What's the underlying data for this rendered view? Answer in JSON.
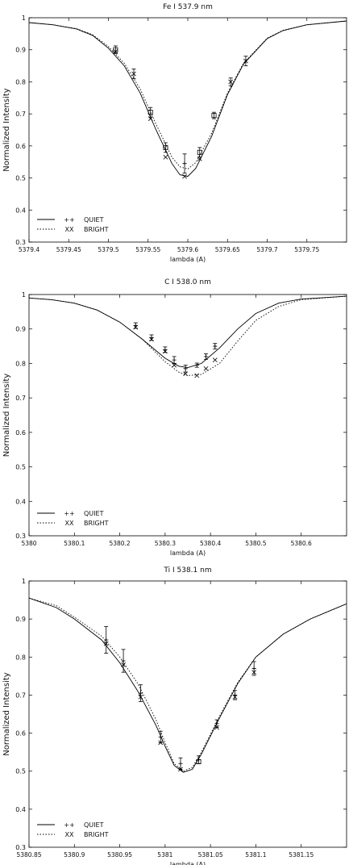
{
  "chart_data": [
    {
      "type": "line",
      "title": "Fe I 537.9 nm",
      "xlabel": "lambda (A)",
      "ylabel": "Normalized Intensity",
      "xlim": [
        5379.4,
        5379.8
      ],
      "ylim": [
        0.3,
        1.0
      ],
      "xticks": [
        5379.4,
        5379.45,
        5379.5,
        5379.55,
        5379.6,
        5379.65,
        5379.7,
        5379.75
      ],
      "yticks": [
        0.3,
        0.4,
        0.5,
        0.6,
        0.7,
        0.8,
        0.9,
        1.0
      ],
      "xtick_labels": [
        "5379.4",
        "5379.45",
        "5379.5",
        "5379.55",
        "5379.6",
        "5379.65",
        "5379.7",
        "5379.75"
      ],
      "ytick_labels": [
        "0.3",
        "0.4",
        "0.5",
        "0.6",
        "0.7",
        "0.8",
        "0.9",
        "1"
      ],
      "legend": {
        "position": "lower-left",
        "entries": [
          {
            "marker_label": "++",
            "label": "QUIET",
            "style": "solid"
          },
          {
            "marker_label": "XX",
            "label": "BRIGHT",
            "style": "dotted"
          }
        ]
      },
      "series": [
        {
          "style": "solid",
          "x": [
            5379.4,
            5379.43,
            5379.46,
            5379.48,
            5379.5,
            5379.52,
            5379.54,
            5379.56,
            5379.58,
            5379.59,
            5379.6,
            5379.61,
            5379.63,
            5379.65,
            5379.67,
            5379.7,
            5379.72,
            5379.75,
            5379.8
          ],
          "y": [
            0.985,
            0.978,
            0.965,
            0.945,
            0.905,
            0.85,
            0.765,
            0.65,
            0.545,
            0.51,
            0.505,
            0.53,
            0.63,
            0.76,
            0.855,
            0.935,
            0.96,
            0.978,
            0.99
          ]
        },
        {
          "style": "dotted",
          "x": [
            5379.4,
            5379.43,
            5379.46,
            5379.48,
            5379.5,
            5379.52,
            5379.54,
            5379.56,
            5379.58,
            5379.59,
            5379.6,
            5379.61,
            5379.63,
            5379.65,
            5379.67,
            5379.7,
            5379.72,
            5379.75,
            5379.8
          ],
          "y": [
            0.985,
            0.978,
            0.966,
            0.947,
            0.91,
            0.858,
            0.778,
            0.668,
            0.565,
            0.535,
            0.528,
            0.548,
            0.64,
            0.765,
            0.858,
            0.936,
            0.961,
            0.978,
            0.99
          ]
        }
      ],
      "points": [
        {
          "x": 5379.509,
          "y": 0.9,
          "err": 0.012,
          "marker": "square"
        },
        {
          "x": 5379.509,
          "y": 0.895,
          "err": 0.0,
          "marker": "x"
        },
        {
          "x": 5379.532,
          "y": 0.825,
          "err": 0.015,
          "marker": "x"
        },
        {
          "x": 5379.553,
          "y": 0.705,
          "err": 0.015,
          "marker": "square"
        },
        {
          "x": 5379.553,
          "y": 0.685,
          "err": 0.0,
          "marker": "x"
        },
        {
          "x": 5379.572,
          "y": 0.595,
          "err": 0.015,
          "marker": "square"
        },
        {
          "x": 5379.572,
          "y": 0.565,
          "err": 0.0,
          "marker": "x"
        },
        {
          "x": 5379.596,
          "y": 0.545,
          "err": 0.03,
          "marker": "plus"
        },
        {
          "x": 5379.596,
          "y": 0.505,
          "err": 0.0,
          "marker": "x"
        },
        {
          "x": 5379.615,
          "y": 0.58,
          "err": 0.015,
          "marker": "square"
        },
        {
          "x": 5379.615,
          "y": 0.56,
          "err": 0.0,
          "marker": "x"
        },
        {
          "x": 5379.633,
          "y": 0.695,
          "err": 0.01,
          "marker": "square"
        },
        {
          "x": 5379.654,
          "y": 0.8,
          "err": 0.012,
          "marker": "x"
        },
        {
          "x": 5379.673,
          "y": 0.865,
          "err": 0.015,
          "marker": "x"
        }
      ]
    },
    {
      "type": "line",
      "title": "C I 538.0 nm",
      "xlabel": "lambda (A)",
      "ylabel": "Normalized Intensity",
      "xlim": [
        5380.0,
        5380.7
      ],
      "ylim": [
        0.3,
        1.0
      ],
      "xticks": [
        5380.0,
        5380.1,
        5380.2,
        5380.3,
        5380.4,
        5380.5,
        5380.6
      ],
      "yticks": [
        0.3,
        0.4,
        0.5,
        0.6,
        0.7,
        0.8,
        0.9,
        1.0
      ],
      "xtick_labels": [
        "5380",
        "5380.1",
        "5380.2",
        "5380.3",
        "5380.4",
        "5380.5",
        "5380.6"
      ],
      "ytick_labels": [
        "0.3",
        "0.4",
        "0.5",
        "0.6",
        "0.7",
        "0.8",
        "0.9",
        "1"
      ],
      "legend": {
        "position": "lower-left",
        "entries": [
          {
            "marker_label": "++",
            "label": "QUIET",
            "style": "solid"
          },
          {
            "marker_label": "XX",
            "label": "BRIGHT",
            "style": "dotted"
          }
        ]
      },
      "series": [
        {
          "style": "solid",
          "x": [
            5380.0,
            5380.05,
            5380.1,
            5380.15,
            5380.2,
            5380.25,
            5380.3,
            5380.33,
            5380.35,
            5380.38,
            5380.42,
            5380.46,
            5380.5,
            5380.55,
            5380.6,
            5380.7
          ],
          "y": [
            0.99,
            0.985,
            0.975,
            0.955,
            0.92,
            0.87,
            0.815,
            0.792,
            0.788,
            0.8,
            0.845,
            0.9,
            0.945,
            0.975,
            0.987,
            0.995
          ]
        },
        {
          "style": "dotted",
          "x": [
            5380.0,
            5380.05,
            5380.1,
            5380.15,
            5380.2,
            5380.25,
            5380.3,
            5380.33,
            5380.35,
            5380.38,
            5380.42,
            5380.46,
            5380.5,
            5380.55,
            5380.6,
            5380.7
          ],
          "y": [
            0.99,
            0.985,
            0.975,
            0.955,
            0.92,
            0.87,
            0.805,
            0.775,
            0.765,
            0.768,
            0.8,
            0.865,
            0.925,
            0.965,
            0.985,
            0.995
          ]
        }
      ],
      "points": [
        {
          "x": 5380.235,
          "y": 0.91,
          "err": 0.008,
          "marker": "plus"
        },
        {
          "x": 5380.235,
          "y": 0.905,
          "err": 0.0,
          "marker": "x"
        },
        {
          "x": 5380.27,
          "y": 0.875,
          "err": 0.008,
          "marker": "plus"
        },
        {
          "x": 5380.27,
          "y": 0.87,
          "err": 0.0,
          "marker": "x"
        },
        {
          "x": 5380.3,
          "y": 0.84,
          "err": 0.008,
          "marker": "plus"
        },
        {
          "x": 5380.3,
          "y": 0.835,
          "err": 0.0,
          "marker": "x"
        },
        {
          "x": 5380.32,
          "y": 0.81,
          "err": 0.01,
          "marker": "plus"
        },
        {
          "x": 5380.32,
          "y": 0.795,
          "err": 0.0,
          "marker": "x"
        },
        {
          "x": 5380.345,
          "y": 0.785,
          "err": 0.01,
          "marker": "plus"
        },
        {
          "x": 5380.345,
          "y": 0.77,
          "err": 0.0,
          "marker": "x"
        },
        {
          "x": 5380.37,
          "y": 0.795,
          "err": 0.006,
          "marker": "plus"
        },
        {
          "x": 5380.37,
          "y": 0.765,
          "err": 0.0,
          "marker": "x"
        },
        {
          "x": 5380.39,
          "y": 0.82,
          "err": 0.008,
          "marker": "plus"
        },
        {
          "x": 5380.39,
          "y": 0.785,
          "err": 0.0,
          "marker": "x"
        },
        {
          "x": 5380.41,
          "y": 0.85,
          "err": 0.008,
          "marker": "plus"
        },
        {
          "x": 5380.41,
          "y": 0.81,
          "err": 0.0,
          "marker": "x"
        }
      ]
    },
    {
      "type": "line",
      "title": "Ti I 538.1 nm",
      "xlabel": "lambda (A)",
      "ylabel": "Normalized Intensity",
      "xlim": [
        5380.85,
        5381.2
      ],
      "ylim": [
        0.3,
        1.0
      ],
      "xticks": [
        5380.85,
        5380.9,
        5380.95,
        5381.0,
        5381.05,
        5381.1,
        5381.15
      ],
      "yticks": [
        0.3,
        0.4,
        0.5,
        0.6,
        0.7,
        0.8,
        0.9,
        1.0
      ],
      "xtick_labels": [
        "5380.85",
        "5380.9",
        "5380.95",
        "5381",
        "5381.05",
        "5381.1",
        "5381.15"
      ],
      "ytick_labels": [
        "0.3",
        "0.4",
        "0.5",
        "0.6",
        "0.7",
        "0.8",
        "0.9",
        "1"
      ],
      "legend": {
        "position": "lower-left",
        "entries": [
          {
            "marker_label": "++",
            "label": "QUIET",
            "style": "solid"
          },
          {
            "marker_label": "XX",
            "label": "BRIGHT",
            "style": "dotted"
          }
        ]
      },
      "series": [
        {
          "style": "solid",
          "x": [
            5380.85,
            5380.88,
            5380.9,
            5380.93,
            5380.95,
            5380.97,
            5380.99,
            5381.0,
            5381.01,
            5381.02,
            5381.03,
            5381.04,
            5381.06,
            5381.08,
            5381.1,
            5381.13,
            5381.16,
            5381.2
          ],
          "y": [
            0.955,
            0.93,
            0.9,
            0.845,
            0.785,
            0.71,
            0.62,
            0.565,
            0.515,
            0.497,
            0.505,
            0.545,
            0.64,
            0.73,
            0.8,
            0.86,
            0.9,
            0.94
          ]
        },
        {
          "style": "dotted",
          "x": [
            5380.85,
            5380.88,
            5380.9,
            5380.93,
            5380.95,
            5380.97,
            5380.99,
            5381.0,
            5381.01,
            5381.02,
            5381.03,
            5381.04,
            5381.06,
            5381.08,
            5381.1,
            5381.13,
            5381.16,
            5381.2
          ],
          "y": [
            0.955,
            0.935,
            0.905,
            0.855,
            0.8,
            0.73,
            0.635,
            0.575,
            0.52,
            0.5,
            0.51,
            0.55,
            0.645,
            0.733,
            0.8,
            0.86,
            0.9,
            0.94
          ]
        }
      ],
      "points": [
        {
          "x": 5380.935,
          "y": 0.845,
          "err": 0.035,
          "marker": "plus"
        },
        {
          "x": 5380.935,
          "y": 0.835,
          "err": 0.0,
          "marker": "x"
        },
        {
          "x": 5380.954,
          "y": 0.79,
          "err": 0.03,
          "marker": "plus"
        },
        {
          "x": 5380.954,
          "y": 0.78,
          "err": 0.0,
          "marker": "x"
        },
        {
          "x": 5380.973,
          "y": 0.705,
          "err": 0.022,
          "marker": "plus"
        },
        {
          "x": 5380.973,
          "y": 0.695,
          "err": 0.0,
          "marker": "x"
        },
        {
          "x": 5380.995,
          "y": 0.59,
          "err": 0.015,
          "marker": "plus"
        },
        {
          "x": 5380.995,
          "y": 0.575,
          "err": 0.0,
          "marker": "x"
        },
        {
          "x": 5381.017,
          "y": 0.52,
          "err": 0.015,
          "marker": "plus"
        },
        {
          "x": 5381.017,
          "y": 0.505,
          "err": 0.0,
          "marker": "x"
        },
        {
          "x": 5381.037,
          "y": 0.53,
          "err": 0.01,
          "marker": "plus"
        },
        {
          "x": 5381.037,
          "y": 0.525,
          "err": 0.0,
          "marker": "square"
        },
        {
          "x": 5381.057,
          "y": 0.625,
          "err": 0.01,
          "marker": "plus"
        },
        {
          "x": 5381.057,
          "y": 0.615,
          "err": 0.0,
          "marker": "x"
        },
        {
          "x": 5381.077,
          "y": 0.7,
          "err": 0.012,
          "marker": "plus"
        },
        {
          "x": 5381.077,
          "y": 0.695,
          "err": 0.0,
          "marker": "x"
        },
        {
          "x": 5381.098,
          "y": 0.77,
          "err": 0.018,
          "marker": "plus"
        },
        {
          "x": 5381.098,
          "y": 0.76,
          "err": 0.0,
          "marker": "x"
        }
      ]
    }
  ]
}
